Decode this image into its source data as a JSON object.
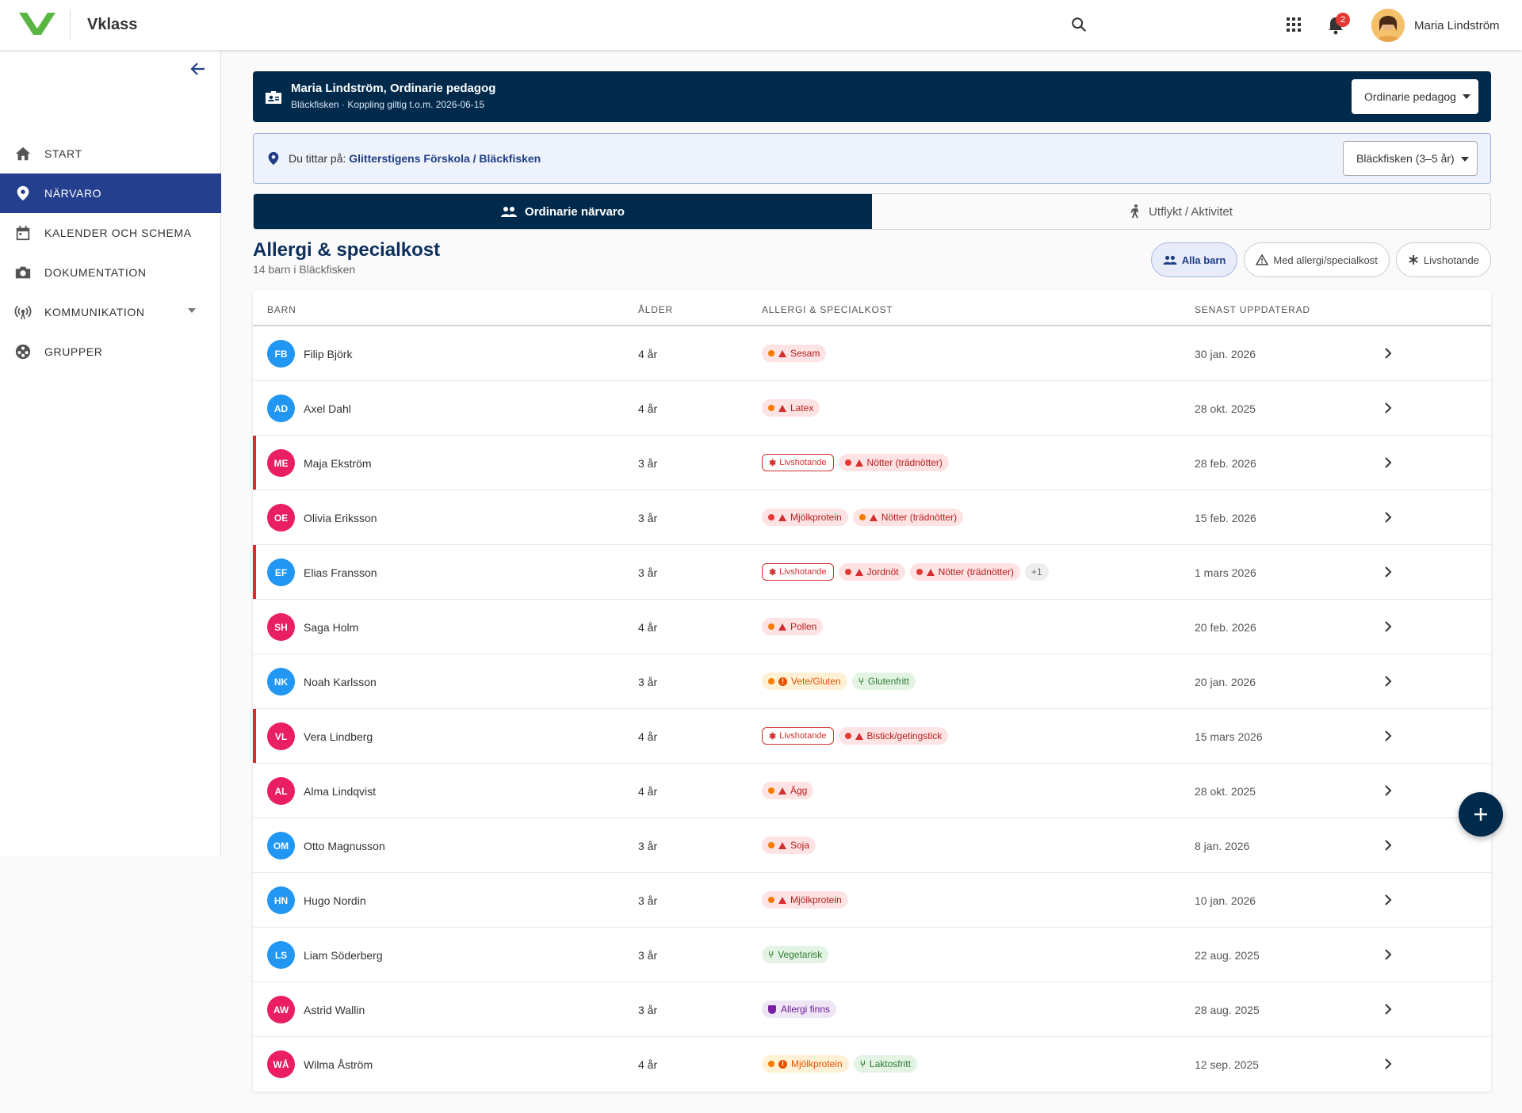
{
  "header": {
    "brand": "Vklass",
    "notification_count": "2",
    "user_name": "Maria Lindström"
  },
  "sidebar": {
    "items": [
      {
        "label": "START",
        "icon": "home-icon"
      },
      {
        "label": "NÄRVARO",
        "icon": "location-pin-icon"
      },
      {
        "label": "KALENDER OCH SCHEMA",
        "icon": "calendar-icon"
      },
      {
        "label": "DOKUMENTATION",
        "icon": "camera-icon"
      },
      {
        "label": "KOMMUNIKATION",
        "icon": "broadcast-icon"
      },
      {
        "label": "GRUPPER",
        "icon": "groups-icon"
      }
    ]
  },
  "role": {
    "title": "Maria Lindström, Ordinarie pedagog",
    "subtitle": "Bläckfisken · Koppling giltig t.o.m. 2026-06-15",
    "selected": "Ordinarie pedagog"
  },
  "location": {
    "prefix": "Du tittar på:",
    "path": "Glitterstigens Förskola / Bläckfisken",
    "selected": "Bläckfisken (3–5 år)"
  },
  "tabs": [
    {
      "label": "Ordinarie närvaro"
    },
    {
      "label": "Utflykt / Aktivitet"
    }
  ],
  "section": {
    "title": "Allergi & specialkost",
    "subtitle": "14 barn i Bläckfisken"
  },
  "filters": [
    {
      "label": "Alla barn"
    },
    {
      "label": "Med allergi/specialkost"
    },
    {
      "label": "Livshotande"
    }
  ],
  "table": {
    "headers": [
      "BARN",
      "ÅLDER",
      "ALLERGI & SPECIALKOST",
      "SENAST UPPDATERAD"
    ],
    "rows": [
      {
        "initials": "FB",
        "name": "Filip Björk",
        "age": "4 år",
        "updated": "30 jan. 2026",
        "avatar_color": "blue",
        "lethal": false,
        "chips": [
          {
            "type": "al-or",
            "label": "Sesam"
          }
        ]
      },
      {
        "initials": "AD",
        "name": "Axel Dahl",
        "age": "4 år",
        "updated": "28 okt. 2025",
        "avatar_color": "blue",
        "lethal": false,
        "chips": [
          {
            "type": "al-or",
            "label": "Latex"
          }
        ]
      },
      {
        "initials": "ME",
        "name": "Maja Ekström",
        "age": "3 år",
        "updated": "28 feb. 2026",
        "avatar_color": "pink",
        "lethal": true,
        "chips": [
          {
            "type": "life",
            "label": "Livshotande"
          },
          {
            "type": "al-red",
            "label": "Nötter (trädnötter)"
          }
        ]
      },
      {
        "initials": "OE",
        "name": "Olivia Eriksson",
        "age": "3 år",
        "updated": "15 feb. 2026",
        "avatar_color": "pink",
        "lethal": false,
        "chips": [
          {
            "type": "al-red",
            "label": "Mjölkprotein"
          },
          {
            "type": "al-or",
            "label": "Nötter (trädnötter)"
          }
        ]
      },
      {
        "initials": "EF",
        "name": "Elias Fransson",
        "age": "3 år",
        "updated": "1 mars 2026",
        "avatar_color": "blue",
        "lethal": true,
        "chips": [
          {
            "type": "life",
            "label": "Livshotande"
          },
          {
            "type": "al-red",
            "label": "Jordnöt"
          },
          {
            "type": "al-red",
            "label": "Nötter (trädnötter)"
          },
          {
            "type": "more",
            "label": "+1"
          }
        ]
      },
      {
        "initials": "SH",
        "name": "Saga Holm",
        "age": "4 år",
        "updated": "20 feb. 2026",
        "avatar_color": "pink",
        "lethal": false,
        "chips": [
          {
            "type": "al-or",
            "label": "Pollen"
          }
        ]
      },
      {
        "initials": "NK",
        "name": "Noah Karlsson",
        "age": "3 år",
        "updated": "20 jan. 2026",
        "avatar_color": "blue",
        "lethal": false,
        "chips": [
          {
            "type": "into",
            "label": "Vete/Gluten"
          },
          {
            "type": "diet",
            "label": "Glutenfritt"
          }
        ]
      },
      {
        "initials": "VL",
        "name": "Vera Lindberg",
        "age": "4 år",
        "updated": "15 mars 2026",
        "avatar_color": "pink",
        "lethal": true,
        "chips": [
          {
            "type": "life",
            "label": "Livshotande"
          },
          {
            "type": "al-red",
            "label": "Bistick/getingstick"
          }
        ]
      },
      {
        "initials": "AL",
        "name": "Alma Lindqvist",
        "age": "4 år",
        "updated": "28 okt. 2025",
        "avatar_color": "pink",
        "lethal": false,
        "chips": [
          {
            "type": "al-or",
            "label": "Ägg"
          }
        ]
      },
      {
        "initials": "OM",
        "name": "Otto Magnusson",
        "age": "3 år",
        "updated": "8 jan. 2026",
        "avatar_color": "blue",
        "lethal": false,
        "chips": [
          {
            "type": "al-or",
            "label": "Soja"
          }
        ]
      },
      {
        "initials": "HN",
        "name": "Hugo Nordin",
        "age": "3 år",
        "updated": "10 jan. 2026",
        "avatar_color": "blue",
        "lethal": false,
        "chips": [
          {
            "type": "al-or",
            "label": "Mjölkprotein"
          }
        ]
      },
      {
        "initials": "LS",
        "name": "Liam Söderberg",
        "age": "3 år",
        "updated": "22 aug. 2025",
        "avatar_color": "blue",
        "lethal": false,
        "chips": [
          {
            "type": "diet",
            "label": "Vegetarisk"
          }
        ]
      },
      {
        "initials": "AW",
        "name": "Astrid Wallin",
        "age": "3 år",
        "updated": "28 aug. 2025",
        "avatar_color": "pink",
        "lethal": false,
        "chips": [
          {
            "type": "exist",
            "label": "Allergi finns"
          }
        ]
      },
      {
        "initials": "WÅ",
        "name": "Wilma Åström",
        "age": "4 år",
        "updated": "12 sep. 2025",
        "avatar_color": "pink",
        "lethal": false,
        "chips": [
          {
            "type": "into",
            "label": "Mjölkprotein"
          },
          {
            "type": "diet",
            "label": "Laktosfritt"
          }
        ]
      }
    ]
  },
  "colors": {
    "primary": "#002a4c",
    "nav_active": "#253f8f",
    "lethal": "#d32f2f"
  }
}
